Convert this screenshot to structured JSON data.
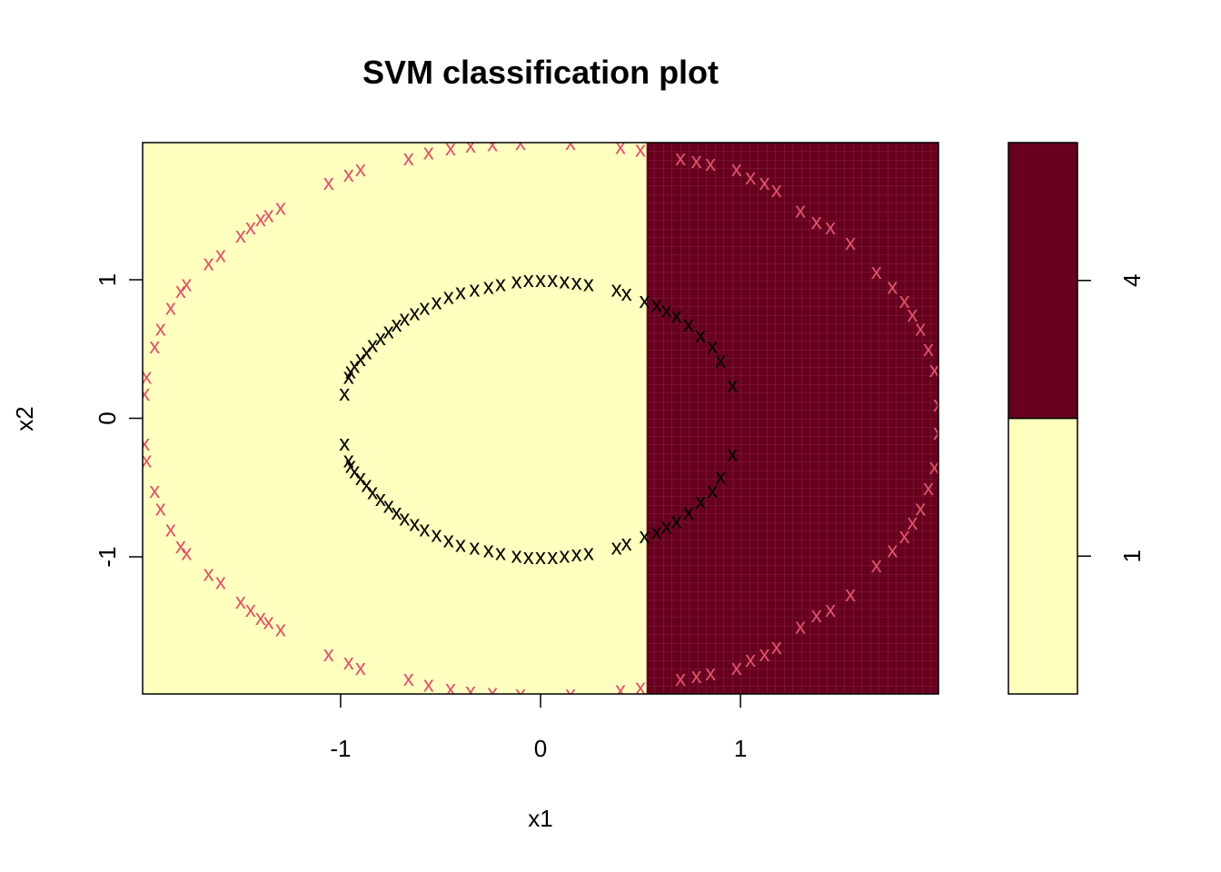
{
  "chart_data": {
    "type": "scatter",
    "title": "SVM classification plot",
    "xlabel": "x1",
    "ylabel": "x2",
    "xlim": [
      -1.99,
      1.99
    ],
    "ylim": [
      -1.99,
      1.99
    ],
    "x_ticks": [
      -1,
      0,
      1
    ],
    "y_ticks": [
      -1,
      0,
      1
    ],
    "x_tick_labels": [
      "-1",
      "0",
      "1"
    ],
    "y_tick_labels": [
      "-1",
      "0",
      "1"
    ],
    "marker": "x",
    "decision_boundary_x1": 0.53,
    "regions": [
      {
        "class": "1",
        "x_from": -1.99,
        "x_to": 0.53,
        "color": "#FFFFBF"
      },
      {
        "class": "4",
        "x_from": 0.53,
        "x_to": 1.99,
        "color": "#67001F"
      }
    ],
    "legend": {
      "position": "right",
      "labels": [
        "1",
        "4"
      ],
      "colors": [
        "#FFFFBF",
        "#67001F"
      ]
    },
    "series": [
      {
        "color": "#000000",
        "points": [
          [
            -0.98,
            0.18
          ],
          [
            -0.96,
            0.3
          ],
          [
            -0.95,
            0.34
          ],
          [
            -0.93,
            0.38
          ],
          [
            -0.9,
            0.43
          ],
          [
            -0.87,
            0.48
          ],
          [
            -0.84,
            0.53
          ],
          [
            -0.8,
            0.58
          ],
          [
            -0.76,
            0.63
          ],
          [
            -0.72,
            0.68
          ],
          [
            -0.68,
            0.72
          ],
          [
            -0.63,
            0.76
          ],
          [
            -0.58,
            0.8
          ],
          [
            -0.52,
            0.84
          ],
          [
            -0.46,
            0.88
          ],
          [
            -0.4,
            0.91
          ],
          [
            -0.33,
            0.93
          ],
          [
            -0.26,
            0.95
          ],
          [
            -0.2,
            0.97
          ],
          [
            -0.12,
            0.99
          ],
          [
            -0.06,
            1.0
          ],
          [
            0.0,
            1.0
          ],
          [
            0.06,
            1.0
          ],
          [
            0.12,
            0.99
          ],
          [
            0.18,
            0.98
          ],
          [
            0.24,
            0.97
          ],
          [
            0.38,
            0.93
          ],
          [
            0.43,
            0.9
          ],
          [
            0.52,
            0.85
          ],
          [
            0.58,
            0.82
          ],
          [
            0.63,
            0.78
          ],
          [
            0.68,
            0.74
          ],
          [
            0.74,
            0.68
          ],
          [
            0.8,
            0.6
          ],
          [
            0.86,
            0.52
          ],
          [
            0.9,
            0.42
          ],
          [
            0.96,
            0.24
          ],
          [
            -0.98,
            -0.18
          ],
          [
            -0.96,
            -0.3
          ],
          [
            -0.95,
            -0.34
          ],
          [
            -0.93,
            -0.38
          ],
          [
            -0.9,
            -0.43
          ],
          [
            -0.87,
            -0.48
          ],
          [
            -0.84,
            -0.53
          ],
          [
            -0.8,
            -0.58
          ],
          [
            -0.76,
            -0.63
          ],
          [
            -0.72,
            -0.68
          ],
          [
            -0.68,
            -0.72
          ],
          [
            -0.63,
            -0.76
          ],
          [
            -0.58,
            -0.8
          ],
          [
            -0.52,
            -0.84
          ],
          [
            -0.46,
            -0.88
          ],
          [
            -0.4,
            -0.91
          ],
          [
            -0.33,
            -0.93
          ],
          [
            -0.26,
            -0.95
          ],
          [
            -0.2,
            -0.97
          ],
          [
            -0.12,
            -0.99
          ],
          [
            -0.06,
            -1.0
          ],
          [
            0.0,
            -1.0
          ],
          [
            0.06,
            -1.0
          ],
          [
            0.12,
            -0.99
          ],
          [
            0.18,
            -0.98
          ],
          [
            0.24,
            -0.97
          ],
          [
            0.38,
            -0.93
          ],
          [
            0.43,
            -0.9
          ],
          [
            0.52,
            -0.85
          ],
          [
            0.58,
            -0.82
          ],
          [
            0.63,
            -0.78
          ],
          [
            0.68,
            -0.74
          ],
          [
            0.74,
            -0.68
          ],
          [
            0.8,
            -0.6
          ],
          [
            0.86,
            -0.52
          ],
          [
            0.9,
            -0.42
          ],
          [
            0.96,
            -0.26
          ]
        ]
      },
      {
        "color": "#DF536B",
        "points": [
          [
            -1.98,
            0.18
          ],
          [
            -1.97,
            0.3
          ],
          [
            -1.93,
            0.52
          ],
          [
            -1.9,
            0.65
          ],
          [
            -1.85,
            0.8
          ],
          [
            -1.8,
            0.92
          ],
          [
            -1.77,
            0.97
          ],
          [
            -1.66,
            1.12
          ],
          [
            -1.6,
            1.18
          ],
          [
            -1.5,
            1.32
          ],
          [
            -1.45,
            1.38
          ],
          [
            -1.4,
            1.44
          ],
          [
            -1.36,
            1.47
          ],
          [
            -1.3,
            1.52
          ],
          [
            -1.06,
            1.7
          ],
          [
            -0.96,
            1.76
          ],
          [
            -0.9,
            1.8
          ],
          [
            -0.66,
            1.88
          ],
          [
            -0.56,
            1.92
          ],
          [
            -0.45,
            1.95
          ],
          [
            -0.35,
            1.97
          ],
          [
            -0.24,
            1.98
          ],
          [
            -0.1,
            1.99
          ],
          [
            0.15,
            1.99
          ],
          [
            0.4,
            1.96
          ],
          [
            0.5,
            1.94
          ],
          [
            0.7,
            1.88
          ],
          [
            0.78,
            1.86
          ],
          [
            0.85,
            1.84
          ],
          [
            0.98,
            1.8
          ],
          [
            1.05,
            1.74
          ],
          [
            1.12,
            1.7
          ],
          [
            1.18,
            1.65
          ],
          [
            1.3,
            1.5
          ],
          [
            1.38,
            1.42
          ],
          [
            1.45,
            1.38
          ],
          [
            1.55,
            1.27
          ],
          [
            1.68,
            1.06
          ],
          [
            1.76,
            0.95
          ],
          [
            1.82,
            0.85
          ],
          [
            1.86,
            0.75
          ],
          [
            1.9,
            0.65
          ],
          [
            1.94,
            0.5
          ],
          [
            1.97,
            0.35
          ],
          [
            1.99,
            0.1
          ],
          [
            -1.98,
            -0.18
          ],
          [
            -1.97,
            -0.3
          ],
          [
            -1.93,
            -0.52
          ],
          [
            -1.9,
            -0.65
          ],
          [
            -1.85,
            -0.8
          ],
          [
            -1.8,
            -0.92
          ],
          [
            -1.77,
            -0.97
          ],
          [
            -1.66,
            -1.12
          ],
          [
            -1.6,
            -1.18
          ],
          [
            -1.5,
            -1.32
          ],
          [
            -1.45,
            -1.38
          ],
          [
            -1.4,
            -1.44
          ],
          [
            -1.36,
            -1.47
          ],
          [
            -1.3,
            -1.52
          ],
          [
            -1.06,
            -1.7
          ],
          [
            -0.96,
            -1.76
          ],
          [
            -0.9,
            -1.8
          ],
          [
            -0.66,
            -1.88
          ],
          [
            -0.56,
            -1.92
          ],
          [
            -0.45,
            -1.95
          ],
          [
            -0.35,
            -1.97
          ],
          [
            -0.24,
            -1.98
          ],
          [
            -0.1,
            -1.99
          ],
          [
            0.15,
            -1.99
          ],
          [
            0.4,
            -1.96
          ],
          [
            0.5,
            -1.94
          ],
          [
            0.7,
            -1.88
          ],
          [
            0.78,
            -1.86
          ],
          [
            0.85,
            -1.84
          ],
          [
            0.98,
            -1.8
          ],
          [
            1.05,
            -1.74
          ],
          [
            1.12,
            -1.7
          ],
          [
            1.18,
            -1.65
          ],
          [
            1.3,
            -1.5
          ],
          [
            1.38,
            -1.42
          ],
          [
            1.45,
            -1.38
          ],
          [
            1.55,
            -1.27
          ],
          [
            1.68,
            -1.06
          ],
          [
            1.76,
            -0.95
          ],
          [
            1.82,
            -0.85
          ],
          [
            1.86,
            -0.75
          ],
          [
            1.9,
            -0.65
          ],
          [
            1.94,
            -0.5
          ],
          [
            1.97,
            -0.35
          ],
          [
            1.99,
            -0.1
          ]
        ]
      }
    ]
  }
}
